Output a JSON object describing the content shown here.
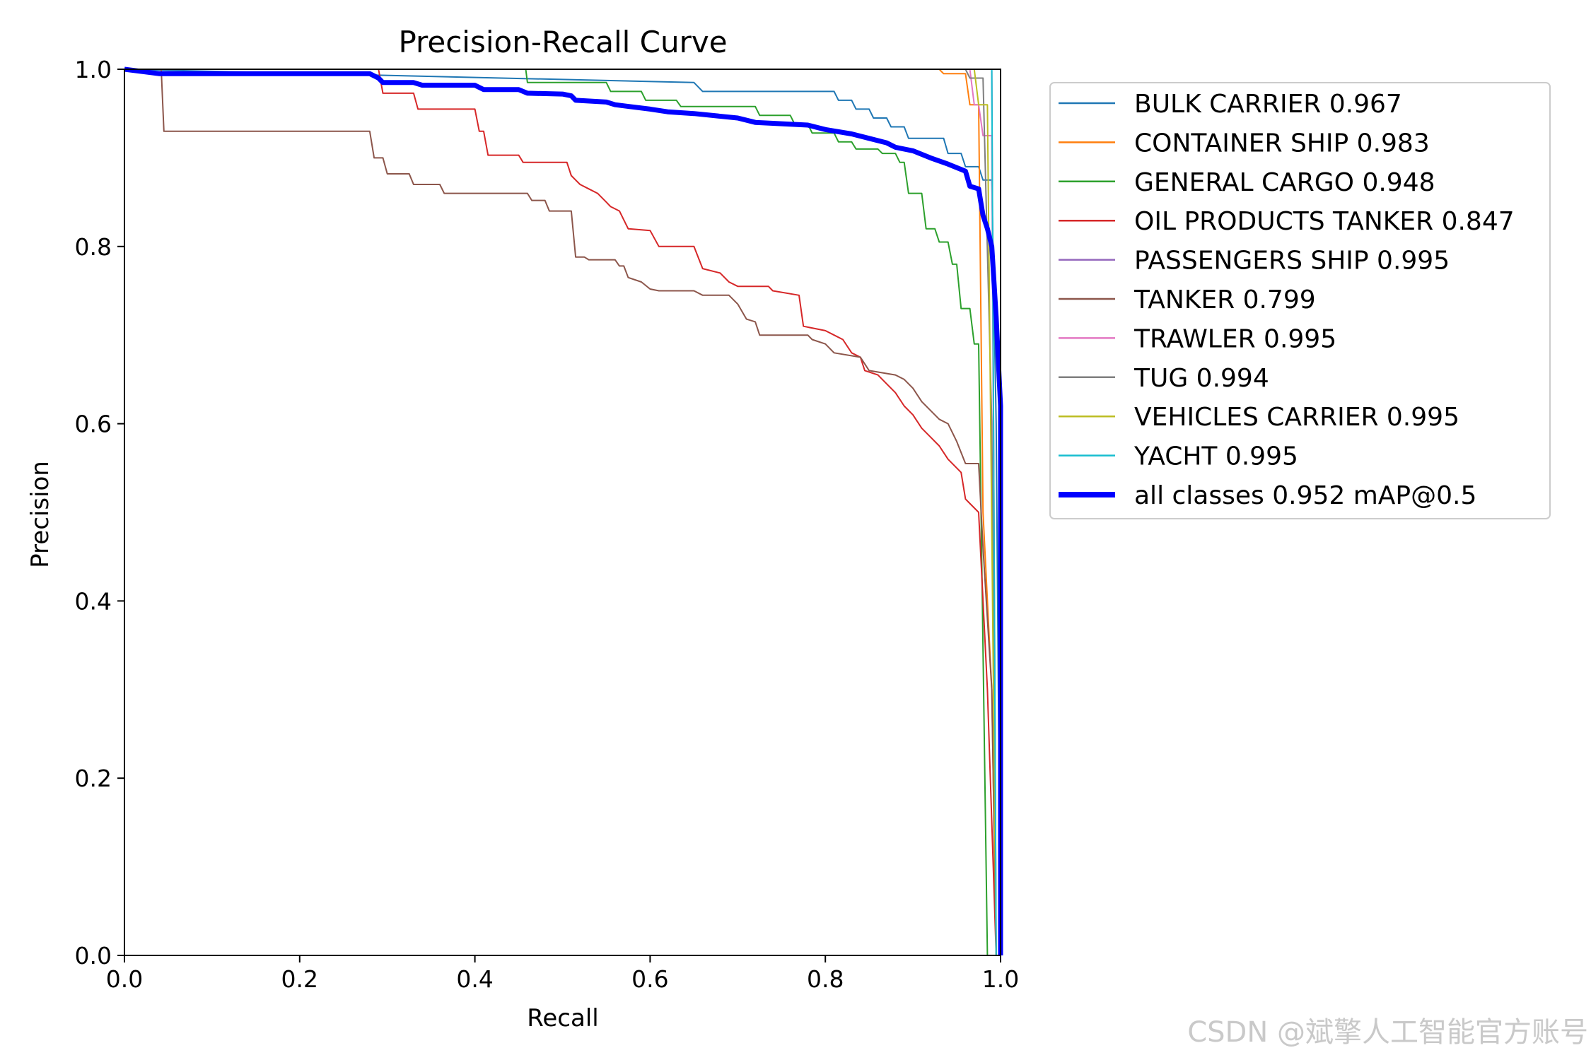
{
  "watermark": "CSDN @斌擎人工智能官方账号",
  "chart_data": {
    "type": "line",
    "title": "Precision-Recall Curve",
    "xlabel": "Recall",
    "ylabel": "Precision",
    "xlim": [
      0,
      1
    ],
    "ylim": [
      0,
      1
    ],
    "xticks": [
      "0.0",
      "0.2",
      "0.4",
      "0.6",
      "0.8",
      "1.0"
    ],
    "yticks": [
      "0.0",
      "0.2",
      "0.4",
      "0.6",
      "0.8",
      "1.0"
    ],
    "grid": false,
    "legend_position": "outside-right",
    "series": [
      {
        "name": "BULK CARRIER 0.967",
        "color": "#1f77b4",
        "width": 2,
        "points": [
          [
            0,
            1
          ],
          [
            0.65,
            0.985
          ],
          [
            0.66,
            0.975
          ],
          [
            0.81,
            0.975
          ],
          [
            0.815,
            0.965
          ],
          [
            0.83,
            0.965
          ],
          [
            0.835,
            0.955
          ],
          [
            0.85,
            0.955
          ],
          [
            0.855,
            0.945
          ],
          [
            0.87,
            0.945
          ],
          [
            0.875,
            0.935
          ],
          [
            0.89,
            0.935
          ],
          [
            0.895,
            0.922
          ],
          [
            0.935,
            0.922
          ],
          [
            0.94,
            0.905
          ],
          [
            0.955,
            0.905
          ],
          [
            0.96,
            0.89
          ],
          [
            0.975,
            0.89
          ],
          [
            0.98,
            0.875
          ],
          [
            0.99,
            0.875
          ],
          [
            0.995,
            0.6
          ],
          [
            1.0,
            0
          ]
        ]
      },
      {
        "name": "CONTAINER SHIP 0.983",
        "color": "#ff7f0e",
        "width": 2,
        "points": [
          [
            0,
            1
          ],
          [
            0.93,
            1
          ],
          [
            0.935,
            0.995
          ],
          [
            0.96,
            0.995
          ],
          [
            0.965,
            0.96
          ],
          [
            0.975,
            0.96
          ],
          [
            0.98,
            0.5
          ],
          [
            0.99,
            0.3
          ],
          [
            0.995,
            0
          ]
        ]
      },
      {
        "name": "GENERAL CARGO 0.948",
        "color": "#2ca02c",
        "width": 2,
        "points": [
          [
            0,
            1
          ],
          [
            0.458,
            1
          ],
          [
            0.46,
            0.985
          ],
          [
            0.55,
            0.985
          ],
          [
            0.555,
            0.975
          ],
          [
            0.59,
            0.975
          ],
          [
            0.595,
            0.965
          ],
          [
            0.63,
            0.965
          ],
          [
            0.635,
            0.958
          ],
          [
            0.72,
            0.958
          ],
          [
            0.725,
            0.948
          ],
          [
            0.76,
            0.948
          ],
          [
            0.765,
            0.938
          ],
          [
            0.78,
            0.938
          ],
          [
            0.785,
            0.928
          ],
          [
            0.81,
            0.928
          ],
          [
            0.815,
            0.918
          ],
          [
            0.83,
            0.918
          ],
          [
            0.835,
            0.91
          ],
          [
            0.86,
            0.91
          ],
          [
            0.865,
            0.905
          ],
          [
            0.88,
            0.905
          ],
          [
            0.885,
            0.895
          ],
          [
            0.89,
            0.895
          ],
          [
            0.895,
            0.86
          ],
          [
            0.91,
            0.86
          ],
          [
            0.915,
            0.82
          ],
          [
            0.925,
            0.82
          ],
          [
            0.93,
            0.805
          ],
          [
            0.94,
            0.805
          ],
          [
            0.945,
            0.78
          ],
          [
            0.95,
            0.78
          ],
          [
            0.955,
            0.73
          ],
          [
            0.965,
            0.73
          ],
          [
            0.97,
            0.69
          ],
          [
            0.975,
            0.69
          ],
          [
            0.985,
            0
          ]
        ]
      },
      {
        "name": "OIL PRODUCTS TANKER 0.847",
        "color": "#d62728",
        "width": 2,
        "points": [
          [
            0,
            1
          ],
          [
            0.29,
            1
          ],
          [
            0.295,
            0.973
          ],
          [
            0.33,
            0.973
          ],
          [
            0.335,
            0.955
          ],
          [
            0.4,
            0.955
          ],
          [
            0.405,
            0.93
          ],
          [
            0.41,
            0.93
          ],
          [
            0.415,
            0.903
          ],
          [
            0.45,
            0.903
          ],
          [
            0.455,
            0.895
          ],
          [
            0.505,
            0.895
          ],
          [
            0.51,
            0.88
          ],
          [
            0.52,
            0.87
          ],
          [
            0.53,
            0.865
          ],
          [
            0.54,
            0.86
          ],
          [
            0.55,
            0.85
          ],
          [
            0.555,
            0.845
          ],
          [
            0.565,
            0.84
          ],
          [
            0.57,
            0.83
          ],
          [
            0.575,
            0.82
          ],
          [
            0.6,
            0.818
          ],
          [
            0.61,
            0.8
          ],
          [
            0.65,
            0.8
          ],
          [
            0.66,
            0.775
          ],
          [
            0.68,
            0.77
          ],
          [
            0.69,
            0.76
          ],
          [
            0.7,
            0.755
          ],
          [
            0.735,
            0.755
          ],
          [
            0.74,
            0.75
          ],
          [
            0.77,
            0.745
          ],
          [
            0.775,
            0.71
          ],
          [
            0.8,
            0.705
          ],
          [
            0.81,
            0.7
          ],
          [
            0.82,
            0.695
          ],
          [
            0.83,
            0.68
          ],
          [
            0.84,
            0.675
          ],
          [
            0.845,
            0.66
          ],
          [
            0.86,
            0.655
          ],
          [
            0.87,
            0.645
          ],
          [
            0.88,
            0.635
          ],
          [
            0.89,
            0.62
          ],
          [
            0.9,
            0.61
          ],
          [
            0.91,
            0.595
          ],
          [
            0.92,
            0.585
          ],
          [
            0.93,
            0.575
          ],
          [
            0.94,
            0.56
          ],
          [
            0.955,
            0.545
          ],
          [
            0.96,
            0.515
          ],
          [
            0.965,
            0.51
          ],
          [
            0.975,
            0.5
          ],
          [
            0.985,
            0.3
          ],
          [
            0.995,
            0
          ]
        ]
      },
      {
        "name": "PASSENGERS SHIP 0.995",
        "color": "#9467bd",
        "width": 2,
        "points": [
          [
            0,
            1
          ],
          [
            0.99,
            1
          ],
          [
            0.995,
            0
          ]
        ]
      },
      {
        "name": "TANKER 0.799",
        "color": "#8c564b",
        "width": 2,
        "points": [
          [
            0,
            1
          ],
          [
            0.042,
            1
          ],
          [
            0.045,
            0.93
          ],
          [
            0.28,
            0.93
          ],
          [
            0.285,
            0.9
          ],
          [
            0.295,
            0.9
          ],
          [
            0.3,
            0.882
          ],
          [
            0.325,
            0.882
          ],
          [
            0.33,
            0.87
          ],
          [
            0.36,
            0.87
          ],
          [
            0.365,
            0.86
          ],
          [
            0.46,
            0.86
          ],
          [
            0.465,
            0.852
          ],
          [
            0.48,
            0.852
          ],
          [
            0.485,
            0.84
          ],
          [
            0.51,
            0.84
          ],
          [
            0.515,
            0.788
          ],
          [
            0.525,
            0.788
          ],
          [
            0.53,
            0.785
          ],
          [
            0.56,
            0.785
          ],
          [
            0.565,
            0.778
          ],
          [
            0.57,
            0.778
          ],
          [
            0.575,
            0.765
          ],
          [
            0.59,
            0.76
          ],
          [
            0.6,
            0.752
          ],
          [
            0.61,
            0.75
          ],
          [
            0.65,
            0.75
          ],
          [
            0.66,
            0.745
          ],
          [
            0.69,
            0.745
          ],
          [
            0.7,
            0.735
          ],
          [
            0.71,
            0.718
          ],
          [
            0.72,
            0.715
          ],
          [
            0.725,
            0.7
          ],
          [
            0.78,
            0.7
          ],
          [
            0.785,
            0.695
          ],
          [
            0.8,
            0.69
          ],
          [
            0.81,
            0.68
          ],
          [
            0.84,
            0.675
          ],
          [
            0.85,
            0.66
          ],
          [
            0.88,
            0.655
          ],
          [
            0.89,
            0.65
          ],
          [
            0.9,
            0.64
          ],
          [
            0.91,
            0.625
          ],
          [
            0.92,
            0.615
          ],
          [
            0.93,
            0.605
          ],
          [
            0.94,
            0.6
          ],
          [
            0.95,
            0.58
          ],
          [
            0.96,
            0.555
          ],
          [
            0.975,
            0.555
          ],
          [
            0.98,
            0.46
          ],
          [
            0.99,
            0.3
          ],
          [
            0.995,
            0
          ]
        ]
      },
      {
        "name": "TRAWLER 0.995",
        "color": "#e377c2",
        "width": 2,
        "points": [
          [
            0,
            1
          ],
          [
            0.965,
            1
          ],
          [
            0.97,
            0.96
          ],
          [
            0.975,
            0.96
          ],
          [
            0.98,
            0.925
          ],
          [
            0.99,
            0.925
          ],
          [
            0.995,
            0
          ]
        ]
      },
      {
        "name": "TUG 0.994",
        "color": "#7f7f7f",
        "width": 2,
        "points": [
          [
            0,
            1
          ],
          [
            0.96,
            1
          ],
          [
            0.965,
            0.99
          ],
          [
            0.98,
            0.99
          ],
          [
            0.99,
            0.6
          ],
          [
            0.995,
            0
          ]
        ]
      },
      {
        "name": "VEHICLES CARRIER 0.995",
        "color": "#bcbd22",
        "width": 2,
        "points": [
          [
            0,
            1
          ],
          [
            0.97,
            1
          ],
          [
            0.975,
            0.96
          ],
          [
            0.985,
            0.96
          ],
          [
            0.995,
            0
          ]
        ]
      },
      {
        "name": "YACHT 0.995",
        "color": "#17becf",
        "width": 2,
        "points": [
          [
            0,
            1
          ],
          [
            0.99,
            1
          ],
          [
            0.995,
            0
          ]
        ]
      },
      {
        "name": "all classes 0.952 mAP@0.5",
        "color": "#0000ff",
        "width": 7,
        "points": [
          [
            0,
            1
          ],
          [
            0.04,
            0.995
          ],
          [
            0.28,
            0.995
          ],
          [
            0.29,
            0.99
          ],
          [
            0.295,
            0.985
          ],
          [
            0.33,
            0.985
          ],
          [
            0.34,
            0.982
          ],
          [
            0.4,
            0.982
          ],
          [
            0.41,
            0.977
          ],
          [
            0.45,
            0.977
          ],
          [
            0.46,
            0.973
          ],
          [
            0.5,
            0.972
          ],
          [
            0.51,
            0.97
          ],
          [
            0.515,
            0.965
          ],
          [
            0.55,
            0.963
          ],
          [
            0.56,
            0.96
          ],
          [
            0.6,
            0.955
          ],
          [
            0.62,
            0.952
          ],
          [
            0.65,
            0.95
          ],
          [
            0.7,
            0.945
          ],
          [
            0.72,
            0.94
          ],
          [
            0.78,
            0.937
          ],
          [
            0.8,
            0.932
          ],
          [
            0.83,
            0.927
          ],
          [
            0.85,
            0.922
          ],
          [
            0.87,
            0.917
          ],
          [
            0.88,
            0.912
          ],
          [
            0.9,
            0.908
          ],
          [
            0.92,
            0.9
          ],
          [
            0.94,
            0.893
          ],
          [
            0.96,
            0.885
          ],
          [
            0.965,
            0.868
          ],
          [
            0.975,
            0.865
          ],
          [
            0.98,
            0.835
          ],
          [
            0.985,
            0.82
          ],
          [
            0.99,
            0.8
          ],
          [
            0.995,
            0.72
          ],
          [
            1.0,
            0.62
          ],
          [
            1.0,
            0
          ]
        ]
      }
    ]
  }
}
